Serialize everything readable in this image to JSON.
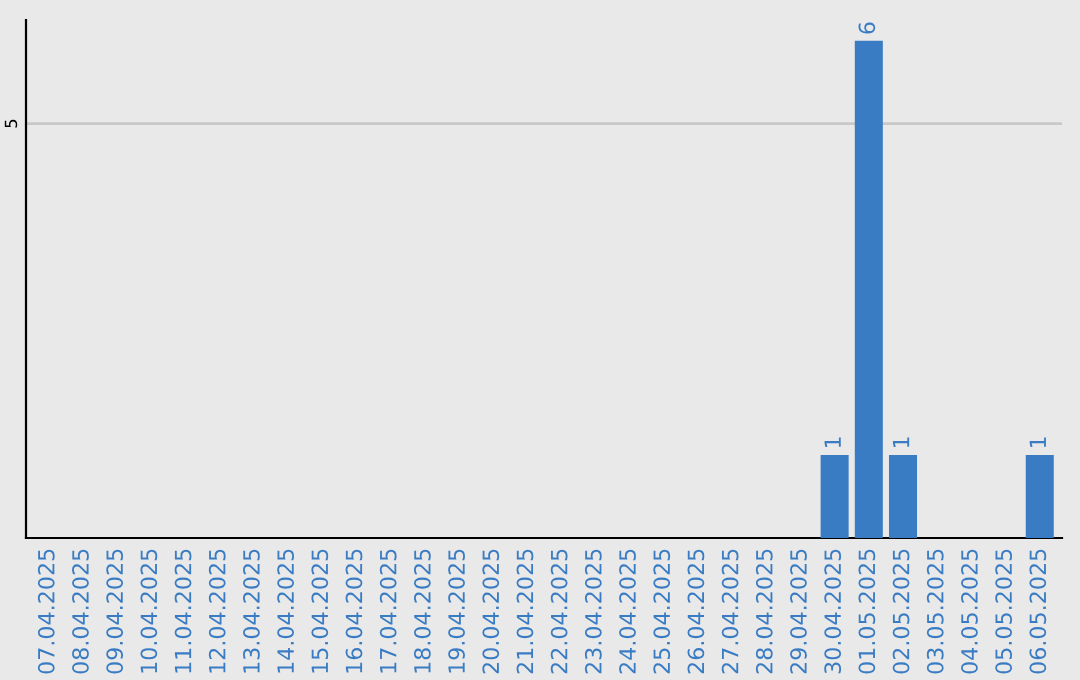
{
  "chart_data": {
    "type": "bar",
    "categories": [
      "07.04.2025",
      "08.04.2025",
      "09.04.2025",
      "10.04.2025",
      "11.04.2025",
      "12.04.2025",
      "13.04.2025",
      "14.04.2025",
      "15.04.2025",
      "16.04.2025",
      "17.04.2025",
      "18.04.2025",
      "19.04.2025",
      "20.04.2025",
      "21.04.2025",
      "22.04.2025",
      "23.04.2025",
      "24.04.2025",
      "25.04.2025",
      "26.04.2025",
      "27.04.2025",
      "28.04.2025",
      "29.04.2025",
      "30.04.2025",
      "01.05.2025",
      "02.05.2025",
      "03.05.2025",
      "04.05.2025",
      "05.05.2025",
      "06.05.2025"
    ],
    "values": [
      null,
      null,
      null,
      null,
      null,
      null,
      null,
      null,
      null,
      null,
      null,
      null,
      null,
      null,
      null,
      null,
      null,
      null,
      null,
      null,
      null,
      null,
      null,
      1,
      6,
      1,
      null,
      null,
      null,
      1
    ],
    "data_labels": true,
    "color": "#3a7cc3",
    "ylim": [
      0,
      6.25
    ],
    "yticks": [
      5
    ],
    "grid": "y"
  }
}
